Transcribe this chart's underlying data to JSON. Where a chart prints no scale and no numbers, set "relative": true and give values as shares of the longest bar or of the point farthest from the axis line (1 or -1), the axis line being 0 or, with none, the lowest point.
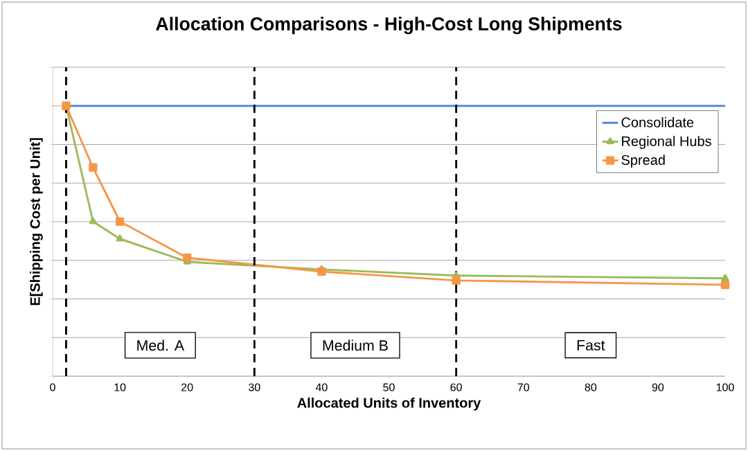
{
  "chart_data": {
    "type": "line",
    "title": "Allocation Comparisons - High-Cost Long Shipments",
    "xlabel": "Allocated Units of Inventory",
    "ylabel": "E[Shipping Cost per Unit]",
    "relative": true,
    "xlim": [
      0,
      100
    ],
    "xticks": [
      0,
      10,
      20,
      30,
      40,
      50,
      60,
      70,
      80,
      90,
      100
    ],
    "grid": "y",
    "legend": "right",
    "line_style": "solid",
    "series": [
      {
        "name": "Consolidate",
        "color": "#4f81e0",
        "marker": "none",
        "x": [
          2,
          100
        ],
        "values": [
          1,
          1
        ]
      },
      {
        "name": "Regional Hubs",
        "color": "#9bbb59",
        "marker": "triangle",
        "x": [
          2,
          6,
          10,
          20,
          40,
          60,
          100
        ],
        "values": [
          1,
          0.572,
          0.508,
          0.423,
          0.395,
          0.372,
          0.362
        ]
      },
      {
        "name": "Spread",
        "color": "#f79646",
        "marker": "square",
        "x": [
          2,
          6,
          10,
          20,
          40,
          60,
          100
        ],
        "values": [
          1,
          0.772,
          0.572,
          0.438,
          0.387,
          0.354,
          0.338
        ]
      }
    ],
    "ref_lines": [
      {
        "axis": "x",
        "value": 2,
        "line_style": "dashed"
      },
      {
        "axis": "x",
        "value": 30,
        "line_style": "dashed"
      },
      {
        "axis": "x",
        "value": 60,
        "line_style": "dashed"
      }
    ],
    "annotations": [
      "Med. A",
      "Medium B",
      "Fast"
    ]
  }
}
